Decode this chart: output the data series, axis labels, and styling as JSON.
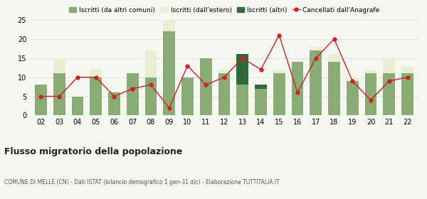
{
  "years": [
    "02",
    "03",
    "04",
    "05",
    "06",
    "07",
    "08",
    "09",
    "10",
    "11",
    "12",
    "13",
    "14",
    "15",
    "16",
    "17",
    "18",
    "19",
    "20",
    "21",
    "22"
  ],
  "iscritti_altri_comuni": [
    8,
    11,
    5,
    10,
    6,
    11,
    10,
    22,
    10,
    15,
    11,
    8,
    7,
    11,
    14,
    17,
    14,
    9,
    11,
    11,
    11
  ],
  "iscritti_estero": [
    0,
    4,
    0,
    2,
    0,
    0,
    7,
    3,
    0,
    0,
    1,
    1,
    1,
    1,
    0,
    1,
    2,
    1,
    1,
    4,
    2
  ],
  "iscritti_altri": [
    0,
    0,
    0,
    0,
    0,
    0,
    0,
    0,
    0,
    0,
    0,
    8,
    1,
    0,
    0,
    0,
    0,
    0,
    0,
    0,
    0
  ],
  "cancellati": [
    5,
    5,
    10,
    10,
    5,
    7,
    8,
    2,
    13,
    8,
    10,
    15,
    12,
    21,
    6,
    15,
    20,
    9,
    4,
    9,
    10
  ],
  "color_altri_comuni": "#8aab76",
  "color_estero": "#e8efd5",
  "color_altri": "#2d6b3c",
  "color_cancellati": "#cc2222",
  "ylim": [
    0,
    25
  ],
  "yticks": [
    0,
    5,
    10,
    15,
    20,
    25
  ],
  "title": "Flusso migratorio della popolazione",
  "subtitle": "COMUNE DI MELLE (CN) - Dati ISTAT (bilancio demografico 1 gen-31 dic) - Elaborazione TUTTITALIA.IT",
  "legend_labels": [
    "Iscritti (da altri comuni)",
    "Iscritti (dall'estero)",
    "Iscritti (altri)",
    "Cancellati dall'Anagrafe"
  ],
  "background_color": "#f7f7f2"
}
